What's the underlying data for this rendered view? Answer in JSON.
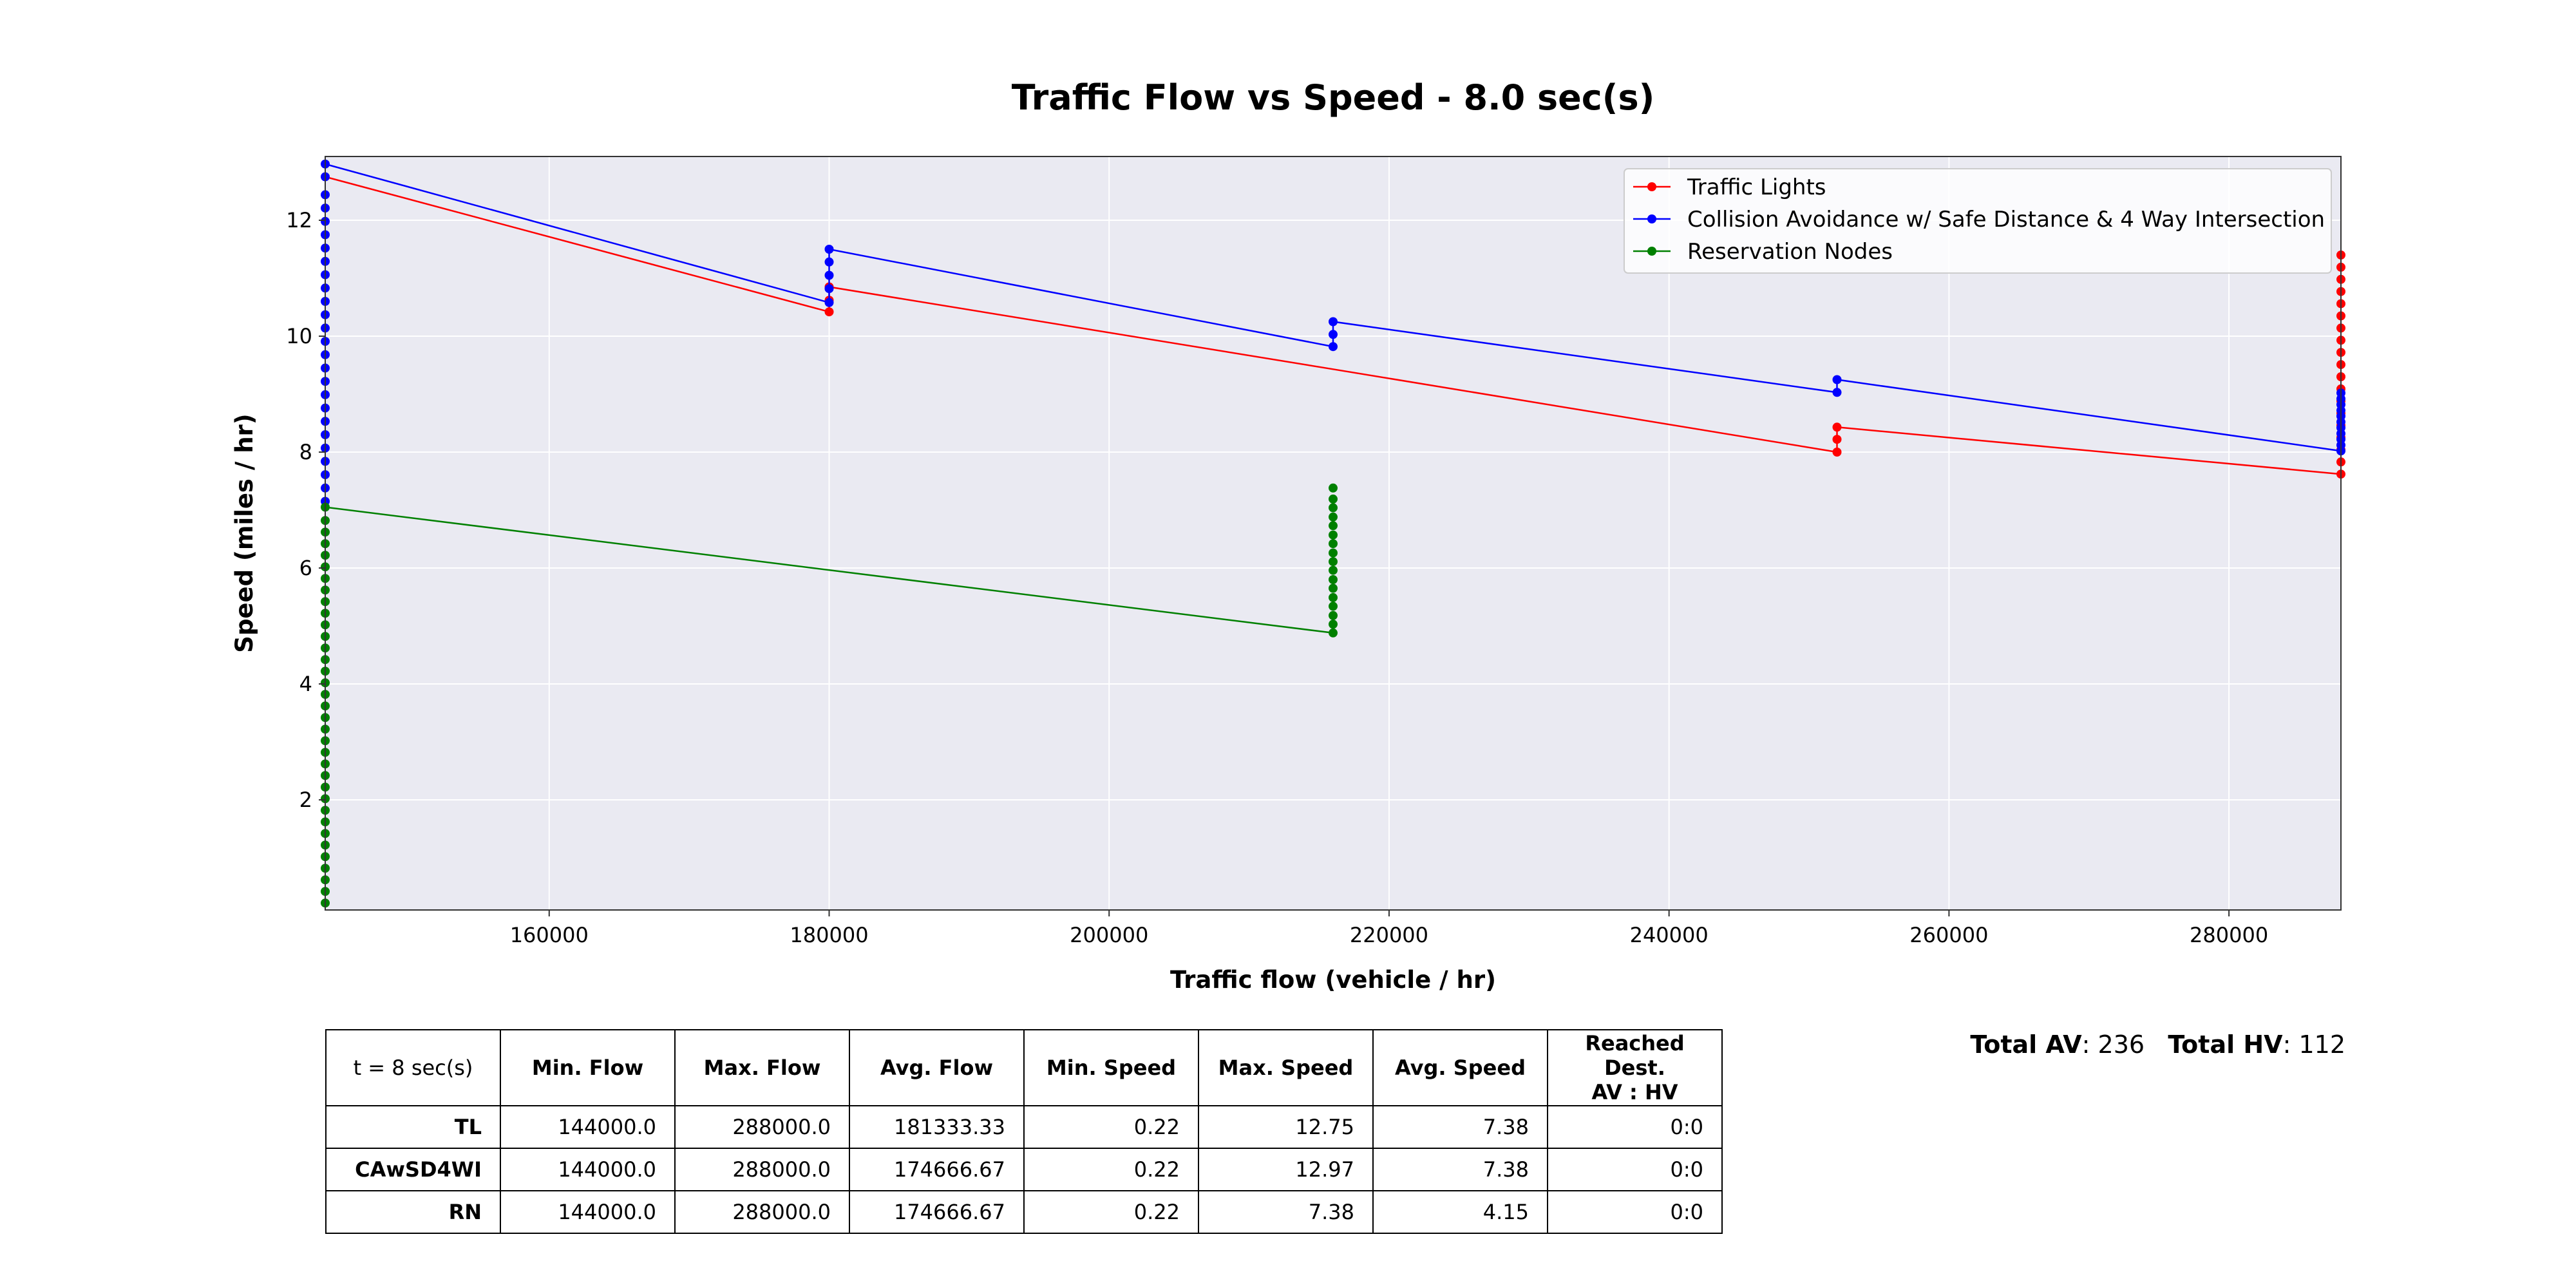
{
  "chart_data": {
    "type": "line",
    "title": "Traffic Flow vs Speed - 8.0 sec(s)",
    "xlabel": "Traffic flow (vehicle / hr)",
    "ylabel": "Speed (miles / hr)",
    "xlim": [
      144000,
      288000
    ],
    "ylim": [
      0.1,
      13.1
    ],
    "xticks": [
      160000,
      180000,
      200000,
      220000,
      240000,
      260000,
      280000
    ],
    "yticks": [
      2,
      4,
      6,
      8,
      10,
      12
    ],
    "grid": true,
    "legend_position": "top-right",
    "series": [
      {
        "name": "Traffic Lights",
        "color": "#ff0000",
        "line": [
          [
            144000,
            12.75
          ],
          [
            180000,
            10.42
          ],
          [
            180000,
            10.85
          ],
          [
            216000,
            9.43
          ],
          [
            252000,
            8.0
          ],
          [
            252000,
            8.43
          ],
          [
            288000,
            7.62
          ]
        ],
        "points": [
          {
            "x": 180000,
            "values": [
              10.42,
              10.62,
              10.85
            ]
          },
          {
            "x": 252000,
            "values": [
              8.0,
              8.22,
              8.43
            ]
          },
          {
            "x": 288000,
            "values": [
              7.62,
              7.83,
              8.04,
              8.25,
              8.46,
              8.67,
              8.88,
              9.09,
              9.3,
              9.51,
              9.72,
              9.93,
              10.14,
              10.35,
              10.56,
              10.77,
              10.98,
              11.19,
              11.4
            ]
          }
        ]
      },
      {
        "name": "Collision Avoidance w/ Safe Distance & 4 Way Intersection",
        "color": "#0000ff",
        "line": [
          [
            144000,
            12.97
          ],
          [
            180000,
            10.58
          ],
          [
            180000,
            11.5
          ],
          [
            216000,
            9.82
          ],
          [
            216000,
            10.25
          ],
          [
            252000,
            9.03
          ],
          [
            252000,
            9.25
          ],
          [
            288000,
            8.02
          ]
        ],
        "points": [
          {
            "x": 144000,
            "values": [
              7.15,
              7.38,
              7.61,
              7.84,
              8.07,
              8.3,
              8.53,
              8.76,
              8.99,
              9.22,
              9.45,
              9.68,
              9.91,
              10.14,
              10.37,
              10.6,
              10.83,
              11.06,
              11.29,
              11.52,
              11.75,
              11.98,
              12.21,
              12.44,
              12.75,
              12.97
            ]
          },
          {
            "x": 180000,
            "values": [
              10.58,
              10.82,
              11.05,
              11.28,
              11.5
            ]
          },
          {
            "x": 216000,
            "values": [
              9.82,
              10.03,
              10.25
            ]
          },
          {
            "x": 252000,
            "values": [
              9.03,
              9.25
            ]
          },
          {
            "x": 288000,
            "values": [
              8.02,
              8.12,
              8.22,
              8.32,
              8.42,
              8.52,
              8.62,
              8.72,
              8.82,
              8.92,
              9.02
            ]
          }
        ]
      },
      {
        "name": "Reservation Nodes",
        "color": "#008000",
        "line": [
          [
            144000,
            7.05
          ],
          [
            216000,
            4.88
          ]
        ],
        "points": [
          {
            "x": 144000,
            "values": [
              0.22,
              0.42,
              0.62,
              0.82,
              1.02,
              1.22,
              1.42,
              1.62,
              1.82,
              2.02,
              2.22,
              2.42,
              2.62,
              2.82,
              3.02,
              3.22,
              3.42,
              3.62,
              3.82,
              4.02,
              4.22,
              4.42,
              4.62,
              4.82,
              5.02,
              5.22,
              5.42,
              5.62,
              5.82,
              6.02,
              6.22,
              6.42,
              6.62,
              6.82,
              7.05
            ]
          },
          {
            "x": 216000,
            "values": [
              4.88,
              5.03,
              5.18,
              5.34,
              5.49,
              5.65,
              5.8,
              5.96,
              6.11,
              6.26,
              6.42,
              6.57,
              6.73,
              6.88,
              7.04,
              7.19,
              7.38
            ]
          }
        ]
      }
    ]
  },
  "table": {
    "corner": "t = 8 sec(s)",
    "headers": [
      "Min. Flow",
      "Max. Flow",
      "Avg. Flow",
      "Min. Speed",
      "Max. Speed",
      "Avg. Speed",
      "Reached Dest.\nAV : HV"
    ],
    "rows": [
      {
        "label": "TL",
        "cells": [
          "144000.0",
          "288000.0",
          "181333.33",
          "0.22",
          "12.75",
          "7.38",
          "0:0"
        ]
      },
      {
        "label": "CAwSD4WI",
        "cells": [
          "144000.0",
          "288000.0",
          "174666.67",
          "0.22",
          "12.97",
          "7.38",
          "0:0"
        ]
      },
      {
        "label": "RN",
        "cells": [
          "144000.0",
          "288000.0",
          "174666.67",
          "0.22",
          "7.38",
          "4.15",
          "0:0"
        ]
      }
    ]
  },
  "totals": {
    "av_label": "Total AV",
    "av_value": ": 236",
    "hv_label": "Total HV",
    "hv_value": ": 112"
  }
}
